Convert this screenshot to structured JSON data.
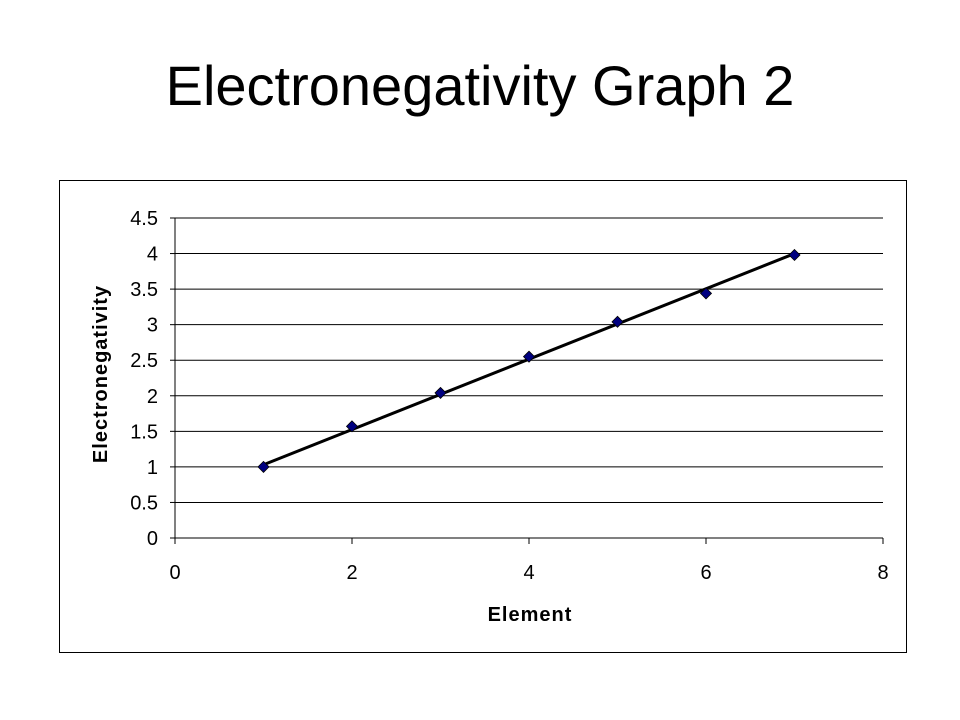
{
  "slide": {
    "title": "Electronegativity Graph 2"
  },
  "chart_data": {
    "type": "scatter",
    "xlabel": "Element",
    "ylabel": "Electronegativity",
    "xlim": [
      0,
      8
    ],
    "ylim": [
      0,
      4.5
    ],
    "xticks": [
      "0",
      "2",
      "4",
      "6",
      "8"
    ],
    "yticks": [
      "0",
      "0.5",
      "1",
      "1.5",
      "2",
      "2.5",
      "3",
      "3.5",
      "4",
      "4.5"
    ],
    "grid": "horizontal",
    "legend": "none",
    "series": [
      {
        "x": [
          1,
          2,
          3,
          4,
          5,
          6,
          7
        ],
        "y": [
          1.0,
          1.57,
          2.04,
          2.55,
          3.04,
          3.44,
          3.98
        ],
        "marker": "diamond",
        "color": "#000080",
        "trendline": {
          "type": "linear",
          "x": [
            1,
            7
          ],
          "y": [
            1.03,
            4.0
          ]
        }
      }
    ]
  }
}
